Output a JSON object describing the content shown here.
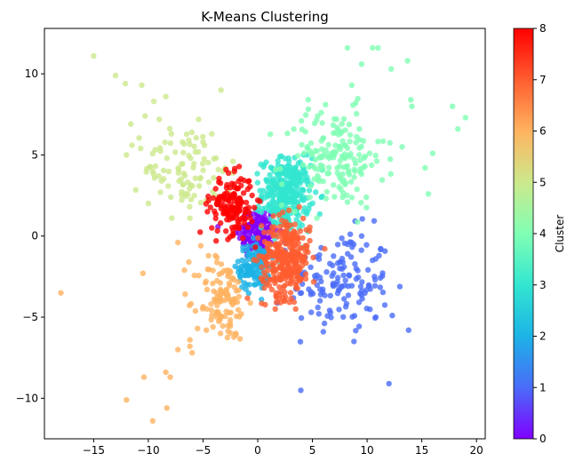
{
  "chart_data": {
    "type": "scatter",
    "title": "K-Means Clustering",
    "xlabel": "",
    "ylabel": "",
    "xlim": [
      -19.5,
      20.8
    ],
    "ylim": [
      -12.5,
      12.8
    ],
    "xticks": [
      -15,
      -10,
      -5,
      0,
      5,
      10,
      15,
      20
    ],
    "yticks": [
      -10,
      -5,
      0,
      5,
      10
    ],
    "grid": false,
    "colorbar": {
      "label": "Cluster",
      "range": [
        0,
        8
      ],
      "ticks": [
        0,
        1,
        2,
        3,
        4,
        5,
        6,
        7,
        8
      ],
      "colormap": "rainbow"
    },
    "point_alpha": 0.8,
    "clusters": [
      {
        "cluster": 0,
        "color": "#8000ff",
        "center": [
          0.0,
          0.2
        ],
        "spread": [
          0.9,
          0.8
        ],
        "count": 140,
        "points": [
          [
            -1.2,
            -0.5
          ],
          [
            1.0,
            0.9
          ],
          [
            -0.8,
            1.4
          ],
          [
            0.6,
            -0.9
          ],
          [
            -2.0,
            0.2
          ],
          [
            1.3,
            0.3
          ]
        ]
      },
      {
        "cluster": 1,
        "color": "#4a6cf9",
        "center": [
          7.5,
          -2.8
        ],
        "spread": [
          2.3,
          1.6
        ],
        "count": 150,
        "points": [
          [
            12.0,
            -9.1
          ],
          [
            13.8,
            -5.8
          ],
          [
            9.5,
            0.0
          ],
          [
            12.3,
            -4.9
          ],
          [
            8.8,
            -6.5
          ],
          [
            10.8,
            -5.0
          ],
          [
            5.5,
            -4.4
          ],
          [
            10.5,
            -1.5
          ],
          [
            6.6,
            -1.7
          ]
        ]
      },
      {
        "cluster": 2,
        "color": "#1cb3e6",
        "center": [
          -0.3,
          -1.9
        ],
        "spread": [
          0.7,
          0.7
        ],
        "count": 120,
        "points": [
          [
            -1.6,
            -2.5
          ],
          [
            0.9,
            -1.0
          ],
          [
            -0.3,
            -3.0
          ],
          [
            0.0,
            -0.8
          ],
          [
            -1.0,
            -1.5
          ]
        ]
      },
      {
        "cluster": 3,
        "color": "#32e6d0",
        "center": [
          2.6,
          2.6
        ],
        "spread": [
          1.1,
          1.1
        ],
        "count": 320,
        "points": [
          [
            4.5,
            5.0
          ],
          [
            0.2,
            2.8
          ],
          [
            3.8,
            0.8
          ],
          [
            1.5,
            4.0
          ],
          [
            2.6,
            1.2
          ],
          [
            3.3,
            3.8
          ]
        ]
      },
      {
        "cluster": 4,
        "color": "#80ffb4",
        "center": [
          7.0,
          4.8
        ],
        "spread": [
          2.3,
          1.5
        ],
        "count": 190,
        "points": [
          [
            8.2,
            11.6
          ],
          [
            10.5,
            11.6
          ],
          [
            11.0,
            11.6
          ],
          [
            13.7,
            10.8
          ],
          [
            17.8,
            8.0
          ],
          [
            19.0,
            7.3
          ],
          [
            18.3,
            6.6
          ],
          [
            15.3,
            4.2
          ],
          [
            15.6,
            2.6
          ],
          [
            16.0,
            5.1
          ],
          [
            12.2,
            10.3
          ],
          [
            9.5,
            10.6
          ],
          [
            14.0,
            8.4
          ],
          [
            14.1,
            8.0
          ],
          [
            13.2,
            5.5
          ],
          [
            4.0,
            7.1
          ],
          [
            6.2,
            8.1
          ],
          [
            8.6,
            9.3
          ]
        ]
      },
      {
        "cluster": 5,
        "color": "#cce98c",
        "center": [
          -6.5,
          4.2
        ],
        "spread": [
          1.9,
          1.4
        ],
        "count": 110,
        "points": [
          [
            -15.0,
            11.1
          ],
          [
            -13.0,
            9.9
          ],
          [
            -12.1,
            9.4
          ],
          [
            -10.6,
            9.3
          ],
          [
            -9.5,
            8.3
          ],
          [
            -8.4,
            8.6
          ],
          [
            -9.0,
            7.2
          ],
          [
            -10.3,
            7.4
          ],
          [
            -11.6,
            6.9
          ],
          [
            -5.4,
            7.2
          ],
          [
            -4.2,
            6.3
          ],
          [
            -5.0,
            5.8
          ],
          [
            -6.3,
            5.9
          ],
          [
            -7.9,
            6.3
          ],
          [
            -10.7,
            5.4
          ],
          [
            -11.5,
            5.6
          ],
          [
            -12.0,
            5.0
          ],
          [
            -8.3,
            4.8
          ],
          [
            -3.8,
            4.8
          ],
          [
            -4.7,
            2.2
          ],
          [
            -5.8,
            2.5
          ],
          [
            -6.2,
            1.1
          ],
          [
            -7.0,
            3.5
          ],
          [
            -8.8,
            3.4
          ],
          [
            -9.6,
            4.0
          ],
          [
            -3.6,
            4.1
          ],
          [
            -2.7,
            2.8
          ]
        ]
      },
      {
        "cluster": 6,
        "color": "#ffb360",
        "center": [
          -3.2,
          -3.9
        ],
        "spread": [
          1.1,
          1.3
        ],
        "count": 130,
        "points": [
          [
            -18.0,
            -3.5
          ],
          [
            -10.5,
            -2.3
          ],
          [
            -12.0,
            -10.1
          ],
          [
            -9.6,
            -11.4
          ],
          [
            -10.4,
            -8.7
          ],
          [
            -8.3,
            -10.6
          ],
          [
            -8.4,
            -8.4
          ],
          [
            -8.0,
            -8.7
          ],
          [
            -6.2,
            -6.8
          ],
          [
            -6.0,
            -7.2
          ],
          [
            -7.3,
            -7.0
          ],
          [
            -6.2,
            -6.4
          ],
          [
            -5.5,
            -5.7
          ],
          [
            -4.7,
            -5.8
          ],
          [
            -7.3,
            -0.4
          ],
          [
            -6.3,
            -1.6
          ],
          [
            -5.2,
            -0.6
          ],
          [
            -6.7,
            -2.1
          ],
          [
            -2.0,
            -6.1
          ],
          [
            -3.4,
            -5.0
          ],
          [
            -1.5,
            -4.8
          ]
        ]
      },
      {
        "cluster": 7,
        "color": "#ff5d2f",
        "center": [
          2.6,
          -1.3
        ],
        "spread": [
          1.1,
          1.2
        ],
        "count": 300,
        "points": [
          [
            1.6,
            -4.5
          ],
          [
            4.5,
            -0.6
          ],
          [
            0.6,
            -3.2
          ],
          [
            3.5,
            -3.0
          ],
          [
            2.1,
            -4.1
          ],
          [
            0.3,
            -2.6
          ]
        ]
      },
      {
        "cluster": 8,
        "color": "#ff0000",
        "center": [
          -2.3,
          1.9
        ],
        "spread": [
          1.0,
          0.9
        ],
        "count": 160,
        "points": [
          [
            -3.8,
            -0.3
          ],
          [
            -4.6,
            1.5
          ],
          [
            -4.2,
            0.5
          ],
          [
            -2.9,
            4.1
          ],
          [
            -3.4,
            0.8
          ],
          [
            -0.8,
            3.4
          ]
        ]
      }
    ]
  }
}
